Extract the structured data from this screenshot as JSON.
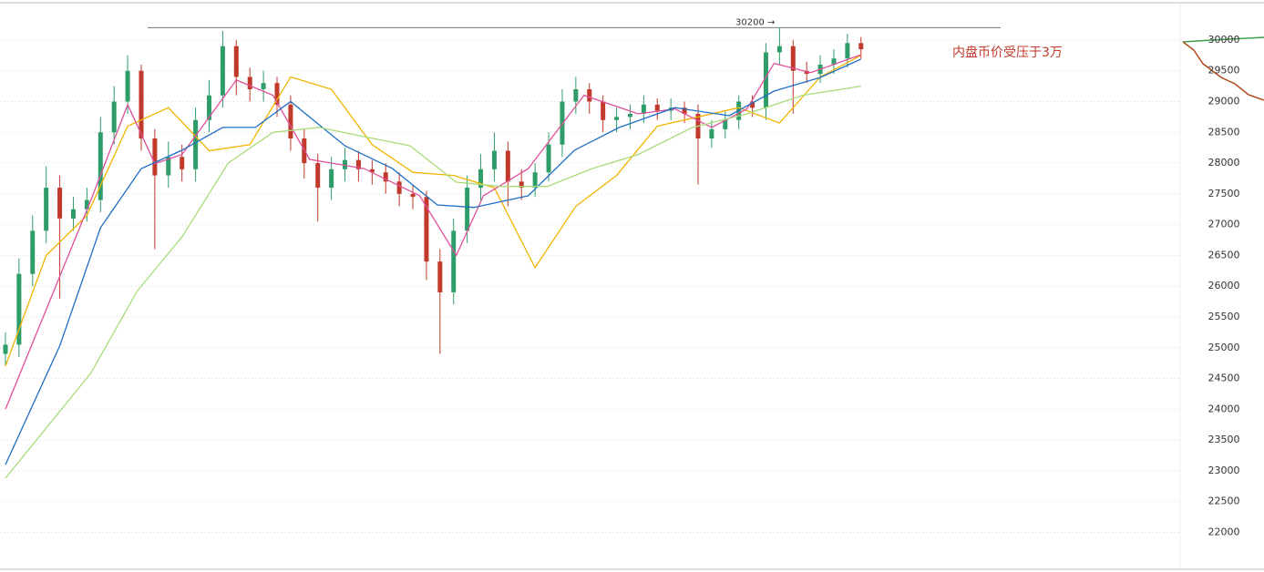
{
  "chart_data": {
    "type": "candlestick",
    "xlim": [
      -0.4,
      86.5
    ],
    "ylim": [
      21400,
      30650
    ],
    "yticks": [
      22000,
      22500,
      23000,
      23500,
      24000,
      24500,
      25000,
      25500,
      26000,
      26500,
      27000,
      27500,
      28000,
      28500,
      29000,
      29500,
      30000
    ],
    "grid": true,
    "up_color": "#2f9d6a",
    "down_color": "#c0392b",
    "x": [
      0,
      1,
      2,
      3,
      4,
      5,
      6,
      7,
      8,
      9,
      10,
      11,
      12,
      13,
      14,
      15,
      16,
      17,
      18,
      19,
      20,
      21,
      22,
      23,
      24,
      25,
      26,
      27,
      28,
      29,
      30,
      31,
      32,
      33,
      34,
      35,
      36,
      37,
      38,
      39,
      40,
      41,
      42,
      43,
      44,
      45,
      46,
      47,
      48,
      49,
      50,
      51,
      52,
      53,
      54,
      55,
      56,
      57,
      58,
      59,
      60,
      61,
      62,
      63
    ],
    "open": [
      24900,
      25050,
      26200,
      26900,
      27600,
      27100,
      27250,
      27400,
      28500,
      29000,
      29500,
      28400,
      27800,
      28100,
      27900,
      28700,
      29100,
      29900,
      29400,
      29200,
      29300,
      28950,
      28400,
      28000,
      27600,
      27900,
      28050,
      27900,
      27850,
      27700,
      27500,
      27450,
      26400,
      25900,
      26900,
      27600,
      27900,
      28200,
      27700,
      27600,
      27850,
      28300,
      29000,
      29200,
      29000,
      28700,
      28750,
      28800,
      28950,
      28850,
      28900,
      28800,
      28400,
      28550,
      28700,
      29000,
      28900,
      29800,
      29900,
      29500,
      29450,
      29600,
      29700,
      29950
    ],
    "high": [
      25250,
      26450,
      27150,
      27950,
      27800,
      27450,
      27600,
      28750,
      29250,
      29750,
      29600,
      28550,
      28350,
      28300,
      28900,
      29350,
      30150,
      30000,
      29550,
      29500,
      29400,
      29100,
      28550,
      28150,
      28100,
      28250,
      28200,
      28050,
      28000,
      27850,
      27650,
      27550,
      26600,
      27100,
      27800,
      28150,
      28500,
      28350,
      27900,
      28000,
      28500,
      29200,
      29400,
      29300,
      29100,
      28900,
      28950,
      29100,
      29050,
      29050,
      29000,
      28950,
      28700,
      28850,
      29100,
      29100,
      29950,
      30200,
      30000,
      29650,
      29750,
      29850,
      30100,
      30050
    ],
    "low": [
      24700,
      24850,
      26000,
      26700,
      25800,
      26900,
      27050,
      27200,
      28300,
      28800,
      28200,
      26600,
      27600,
      27700,
      27700,
      28500,
      28900,
      29100,
      29000,
      29000,
      28750,
      28200,
      27750,
      27050,
      27400,
      27700,
      27700,
      27650,
      27500,
      27300,
      27250,
      26100,
      24900,
      25700,
      26700,
      27400,
      27700,
      27300,
      27400,
      27450,
      27700,
      28100,
      28800,
      28800,
      28500,
      28500,
      28550,
      28650,
      28700,
      28700,
      28650,
      27650,
      28250,
      28400,
      28550,
      28750,
      28700,
      29600,
      28800,
      29300,
      29300,
      29450,
      29550,
      29700
    ],
    "close": [
      25050,
      26200,
      26900,
      27600,
      27100,
      27250,
      27400,
      28500,
      29000,
      29500,
      28400,
      27800,
      28100,
      27900,
      28700,
      29100,
      29900,
      29400,
      29200,
      29300,
      28950,
      28400,
      28000,
      27600,
      27900,
      28050,
      27900,
      27850,
      27700,
      27500,
      27450,
      26400,
      25900,
      26900,
      27600,
      27900,
      28200,
      27700,
      27600,
      27850,
      28300,
      29000,
      29200,
      29000,
      28700,
      28750,
      28800,
      28950,
      28850,
      28900,
      28800,
      28400,
      28550,
      28700,
      29000,
      28900,
      29800,
      29900,
      29500,
      29450,
      29600,
      29700,
      29950,
      29850
    ],
    "series": [
      {
        "color": "#f0b400",
        "x": [
          0,
          3,
          6,
          9,
          12,
          15,
          18,
          21,
          24,
          27,
          30,
          33,
          36,
          39,
          42,
          45,
          48,
          51,
          54,
          57,
          60,
          63
        ],
        "values": [
          24700,
          26500,
          27150,
          28600,
          28900,
          28200,
          28300,
          29400,
          29200,
          28300,
          27850,
          27800,
          27600,
          26300,
          27300,
          27800,
          28600,
          28750,
          28900,
          28650,
          29400,
          29750
        ]
      },
      {
        "color": "#e0509a",
        "x": [
          0,
          3,
          6.3,
          9,
          11,
          13,
          17,
          19.7,
          22.4,
          26.4,
          30.5,
          33.2,
          35.2,
          38.5,
          42.6,
          46.6,
          49.3,
          52,
          54.6,
          56.6,
          59.3,
          63
        ],
        "values": [
          24000,
          25620,
          27400,
          28950,
          27990,
          28140,
          29350,
          29100,
          28060,
          27910,
          27470,
          26500,
          27470,
          27910,
          29100,
          28800,
          28880,
          28580,
          28880,
          29620,
          29470,
          29760
        ]
      },
      {
        "color": "#1f6fc4",
        "x": [
          0,
          4,
          7,
          10,
          13,
          16,
          18.4,
          21,
          25,
          28.5,
          31.8,
          34.5,
          38.5,
          41.9,
          45.2,
          49.3,
          53.3,
          56.6,
          60,
          63
        ],
        "values": [
          23100,
          25030,
          26950,
          27910,
          28210,
          28580,
          28580,
          29000,
          28280,
          27910,
          27320,
          27280,
          27470,
          28210,
          28580,
          28900,
          28770,
          29170,
          29390,
          29690
        ]
      },
      {
        "color": "#a8dc7a",
        "x": [
          0,
          6.3,
          9.7,
          13,
          16.4,
          19.7,
          23.1,
          26.4,
          29.8,
          33.2,
          36.5,
          39.9,
          43.2,
          46.6,
          50.6,
          54.6,
          58.7,
          63
        ],
        "values": [
          22880,
          24590,
          25920,
          26800,
          28000,
          28500,
          28580,
          28430,
          28280,
          27690,
          27620,
          27620,
          27910,
          28140,
          28580,
          28800,
          29100,
          29250
        ]
      }
    ],
    "reference_line": {
      "value": 30200,
      "label": "30200 →"
    },
    "annotation": "内盘币价受压于3万"
  }
}
